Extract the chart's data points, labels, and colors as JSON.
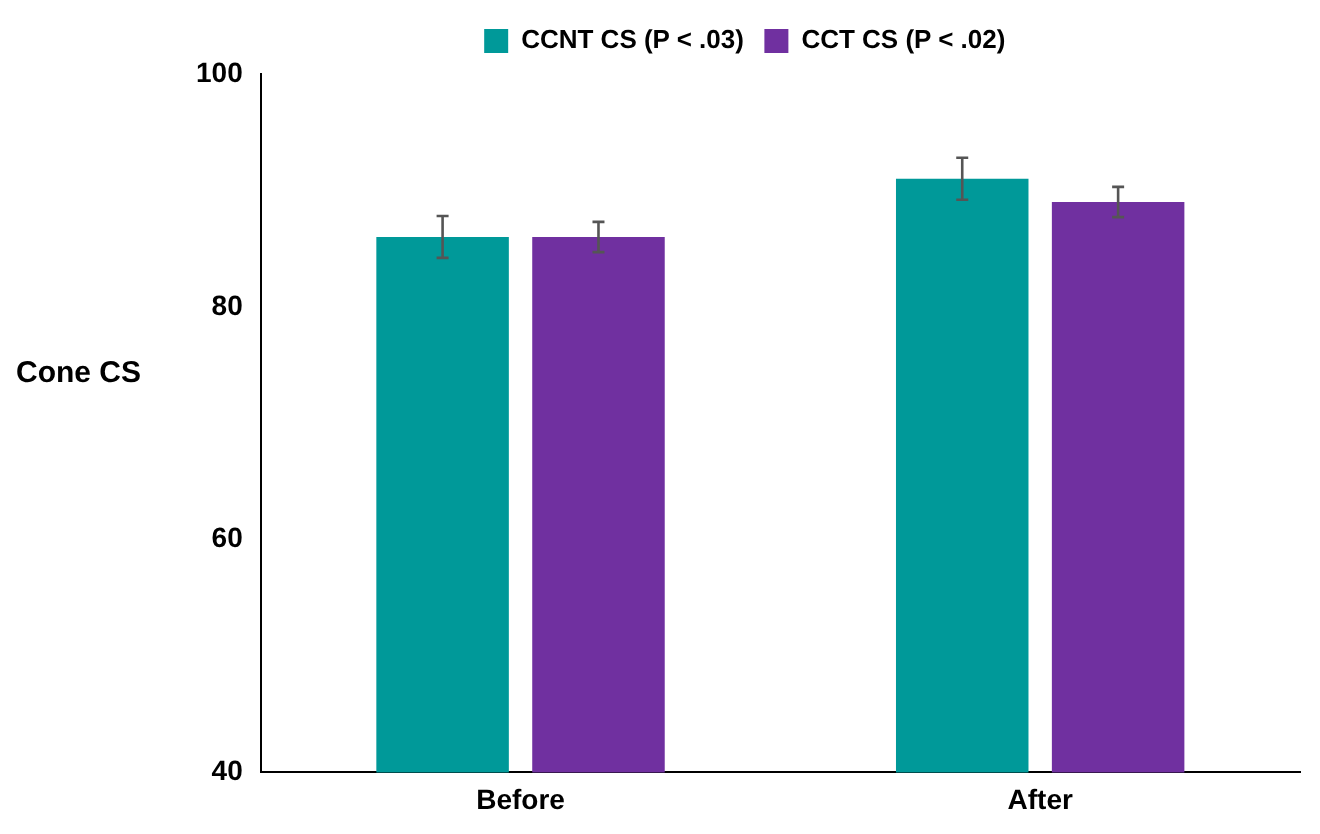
{
  "chart_data": {
    "type": "bar",
    "ylabel": "Cone CS",
    "categories": [
      "Before",
      "After"
    ],
    "series": [
      {
        "name": "CCNT CS (P < .03)",
        "color": "#009999",
        "values": [
          86,
          91
        ],
        "errors": [
          1.8,
          1.8
        ]
      },
      {
        "name": "CCT CS (P < .02)",
        "color": "#7030a0",
        "values": [
          86,
          89
        ],
        "errors": [
          1.3,
          1.3
        ]
      }
    ],
    "ylim": [
      40,
      100
    ],
    "yticks": [
      40,
      60,
      80,
      100
    ],
    "grid": false,
    "legend": "top"
  }
}
